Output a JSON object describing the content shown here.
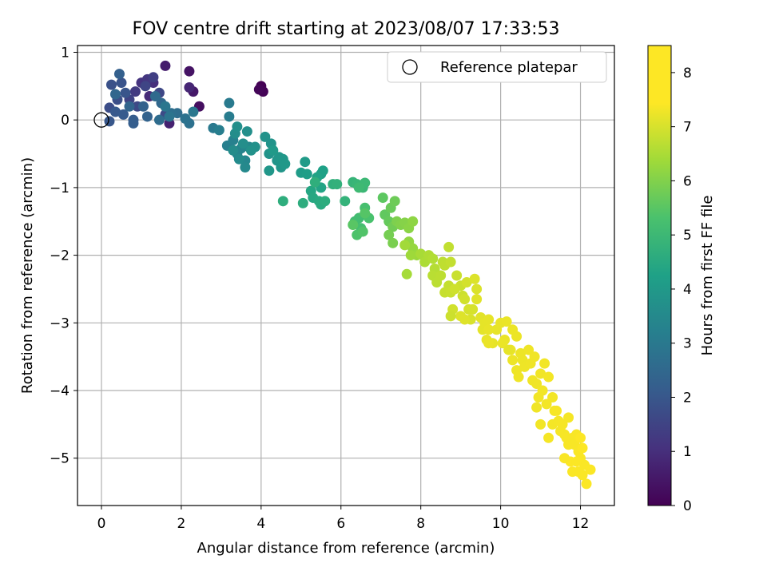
{
  "chart_data": {
    "type": "scatter",
    "title": "FOV centre drift starting at 2023/08/07 17:33:53",
    "xlabel": "Angular distance from reference (arcmin)",
    "ylabel": "Rotation from reference (arcmin)",
    "xlim": [
      -0.6,
      12.85
    ],
    "ylim": [
      -5.7,
      1.1
    ],
    "xticks": [
      0,
      2,
      4,
      6,
      8,
      10,
      12
    ],
    "yticks": [
      1,
      0,
      -1,
      -2,
      -3,
      -4,
      -5
    ],
    "xtick_labels": [
      "0",
      "2",
      "4",
      "6",
      "8",
      "10",
      "12"
    ],
    "ytick_labels": [
      "1",
      "0",
      "−1",
      "−2",
      "−3",
      "−4",
      "−5"
    ],
    "grid": true,
    "legend": {
      "position": "top-right",
      "entries": [
        "Reference platepar"
      ]
    },
    "reference_point": {
      "x": 0,
      "y": 0
    },
    "colorbar": {
      "label": "Hours from first FF file",
      "range": [
        0,
        8.5
      ],
      "ticks": [
        0,
        1,
        2,
        3,
        4,
        5,
        6,
        7,
        8
      ],
      "tick_labels": [
        "0",
        "1",
        "2",
        "3",
        "4",
        "5",
        "6",
        "7",
        "8"
      ],
      "colormap": "viridis"
    },
    "points": [
      [
        4.0,
        0.5,
        0.0
      ],
      [
        4.05,
        0.42,
        0.05
      ],
      [
        3.95,
        0.45,
        0.1
      ],
      [
        2.45,
        0.2,
        0.3
      ],
      [
        2.2,
        0.72,
        0.4
      ],
      [
        2.3,
        0.42,
        0.5
      ],
      [
        1.6,
        0.8,
        0.6
      ],
      [
        1.7,
        -0.05,
        0.7
      ],
      [
        2.2,
        0.48,
        0.8
      ],
      [
        1.2,
        0.35,
        0.9
      ],
      [
        1.3,
        0.55,
        1.0
      ],
      [
        1.0,
        0.55,
        1.1
      ],
      [
        1.15,
        0.6,
        1.2
      ],
      [
        0.85,
        0.42,
        1.3
      ],
      [
        1.3,
        0.63,
        1.4
      ],
      [
        0.7,
        0.3,
        1.5
      ],
      [
        1.1,
        0.5,
        1.55
      ],
      [
        1.45,
        0.4,
        1.6
      ],
      [
        0.9,
        0.2,
        1.65
      ],
      [
        1.6,
        0.08,
        1.7
      ],
      [
        0.2,
        0.18,
        1.75
      ],
      [
        0.4,
        0.3,
        1.8
      ],
      [
        0.25,
        0.52,
        1.85
      ],
      [
        0.5,
        0.55,
        1.9
      ],
      [
        0.6,
        0.4,
        1.95
      ],
      [
        0.2,
        -0.02,
        2.0
      ],
      [
        0.35,
        0.12,
        2.05
      ],
      [
        0.55,
        0.08,
        2.1
      ],
      [
        0.8,
        0.0,
        2.15
      ],
      [
        0.8,
        -0.05,
        2.2
      ],
      [
        0.45,
        0.68,
        2.25
      ],
      [
        1.05,
        0.2,
        2.3
      ],
      [
        1.15,
        0.05,
        2.35
      ],
      [
        0.7,
        0.2,
        2.4
      ],
      [
        0.35,
        0.38,
        2.45
      ],
      [
        1.5,
        0.25,
        2.5
      ],
      [
        1.35,
        0.35,
        2.55
      ],
      [
        1.45,
        0.0,
        2.6
      ],
      [
        1.9,
        0.1,
        2.65
      ],
      [
        1.75,
        0.1,
        2.7
      ],
      [
        2.2,
        -0.05,
        2.75
      ],
      [
        2.1,
        0.02,
        2.8
      ],
      [
        1.7,
        0.05,
        2.85
      ],
      [
        1.6,
        0.2,
        2.9
      ],
      [
        2.3,
        0.12,
        2.95
      ],
      [
        2.8,
        -0.12,
        3.0
      ],
      [
        3.2,
        0.25,
        3.05
      ],
      [
        3.2,
        0.05,
        3.1
      ],
      [
        2.95,
        -0.15,
        3.15
      ],
      [
        3.15,
        -0.38,
        3.2
      ],
      [
        3.3,
        -0.3,
        3.25
      ],
      [
        3.5,
        -0.42,
        3.3
      ],
      [
        3.4,
        -0.5,
        3.35
      ],
      [
        3.6,
        -0.6,
        3.4
      ],
      [
        3.7,
        -0.4,
        3.45
      ],
      [
        3.6,
        -0.7,
        3.5
      ],
      [
        3.45,
        -0.58,
        3.55
      ],
      [
        3.3,
        -0.45,
        3.6
      ],
      [
        3.35,
        -0.2,
        3.62
      ],
      [
        3.55,
        -0.35,
        3.65
      ],
      [
        3.4,
        -0.1,
        3.68
      ],
      [
        3.65,
        -0.17,
        3.7
      ],
      [
        3.85,
        -0.4,
        3.72
      ],
      [
        3.75,
        -0.45,
        3.75
      ],
      [
        4.1,
        -0.25,
        3.78
      ],
      [
        4.25,
        -0.35,
        3.8
      ],
      [
        4.2,
        -0.5,
        3.82
      ],
      [
        4.4,
        -0.6,
        3.85
      ],
      [
        4.5,
        -0.7,
        3.88
      ],
      [
        4.45,
        -0.55,
        3.9
      ],
      [
        4.2,
        -0.75,
        3.92
      ],
      [
        4.55,
        -0.58,
        3.95
      ],
      [
        4.6,
        -0.65,
        3.98
      ],
      [
        4.3,
        -0.45,
        4.0
      ],
      [
        5.1,
        -0.62,
        4.05
      ],
      [
        5.0,
        -0.78,
        4.1
      ],
      [
        5.15,
        -0.8,
        4.15
      ],
      [
        5.5,
        -0.8,
        4.2
      ],
      [
        5.55,
        -0.75,
        4.25
      ],
      [
        5.4,
        -0.85,
        4.3
      ],
      [
        5.5,
        -1.0,
        4.35
      ],
      [
        5.25,
        -1.05,
        4.4
      ],
      [
        5.3,
        -1.15,
        4.45
      ],
      [
        5.45,
        -1.2,
        4.5
      ],
      [
        5.5,
        -1.25,
        4.55
      ],
      [
        5.6,
        -1.2,
        4.6
      ],
      [
        5.05,
        -1.23,
        4.62
      ],
      [
        4.55,
        -1.2,
        4.65
      ],
      [
        5.35,
        -0.92,
        4.68
      ],
      [
        5.8,
        -0.95,
        4.7
      ],
      [
        5.9,
        -0.95,
        4.75
      ],
      [
        6.1,
        -1.2,
        4.8
      ],
      [
        6.3,
        -0.92,
        4.85
      ],
      [
        6.4,
        -0.95,
        4.9
      ],
      [
        6.55,
        -1.0,
        4.95
      ],
      [
        6.6,
        -0.93,
        5.0
      ],
      [
        6.45,
        -1.0,
        5.05
      ],
      [
        6.35,
        -1.5,
        5.1
      ],
      [
        6.45,
        -1.45,
        5.15
      ],
      [
        6.5,
        -1.6,
        5.2
      ],
      [
        6.6,
        -1.3,
        5.25
      ],
      [
        6.7,
        -1.45,
        5.3
      ],
      [
        6.4,
        -1.7,
        5.35
      ],
      [
        6.55,
        -1.65,
        5.4
      ],
      [
        6.6,
        -1.38,
        5.45
      ],
      [
        6.3,
        -1.55,
        5.5
      ],
      [
        7.05,
        -1.15,
        5.55
      ],
      [
        7.1,
        -1.4,
        5.6
      ],
      [
        7.2,
        -1.5,
        5.65
      ],
      [
        7.25,
        -1.3,
        5.7
      ],
      [
        7.35,
        -1.2,
        5.75
      ],
      [
        7.3,
        -1.58,
        5.8
      ],
      [
        7.2,
        -1.7,
        5.85
      ],
      [
        7.3,
        -1.82,
        5.9
      ],
      [
        7.4,
        -1.5,
        5.95
      ],
      [
        7.5,
        -1.55,
        6.0
      ],
      [
        7.6,
        -1.52,
        6.05
      ],
      [
        7.7,
        -1.6,
        6.1
      ],
      [
        7.8,
        -1.5,
        6.15
      ],
      [
        7.7,
        -1.8,
        6.2
      ],
      [
        7.8,
        -1.9,
        6.25
      ],
      [
        7.9,
        -2.0,
        6.3
      ],
      [
        7.75,
        -2.0,
        6.35
      ],
      [
        7.6,
        -1.85,
        6.4
      ],
      [
        7.65,
        -2.28,
        6.45
      ],
      [
        8.0,
        -1.98,
        6.5
      ],
      [
        8.1,
        -2.1,
        6.55
      ],
      [
        8.2,
        -2.0,
        6.6
      ],
      [
        8.3,
        -2.05,
        6.65
      ],
      [
        8.35,
        -2.2,
        6.7
      ],
      [
        8.3,
        -2.3,
        6.75
      ],
      [
        8.4,
        -2.4,
        6.78
      ],
      [
        8.5,
        -2.3,
        6.8
      ],
      [
        8.55,
        -2.1,
        6.82
      ],
      [
        8.6,
        -2.15,
        6.85
      ],
      [
        8.7,
        -1.88,
        6.88
      ],
      [
        8.75,
        -2.1,
        6.9
      ],
      [
        8.7,
        -2.45,
        6.92
      ],
      [
        8.6,
        -2.55,
        6.95
      ],
      [
        8.75,
        -2.55,
        6.98
      ],
      [
        8.9,
        -2.3,
        7.0
      ],
      [
        9.0,
        -2.45,
        7.02
      ],
      [
        9.05,
        -2.6,
        7.05
      ],
      [
        8.85,
        -2.5,
        7.08
      ],
      [
        8.8,
        -2.8,
        7.1
      ],
      [
        9.1,
        -2.65,
        7.12
      ],
      [
        9.15,
        -2.4,
        7.15
      ],
      [
        9.2,
        -2.8,
        7.18
      ],
      [
        9.3,
        -2.8,
        7.2
      ],
      [
        9.25,
        -2.95,
        7.22
      ],
      [
        9.4,
        -2.5,
        7.25
      ],
      [
        9.35,
        -2.35,
        7.28
      ],
      [
        9.0,
        -2.9,
        7.3
      ],
      [
        9.1,
        -2.95,
        7.32
      ],
      [
        9.4,
        -2.65,
        7.35
      ],
      [
        9.5,
        -2.92,
        7.38
      ],
      [
        9.55,
        -3.1,
        7.4
      ],
      [
        9.6,
        -3.0,
        7.42
      ],
      [
        9.7,
        -2.95,
        7.45
      ],
      [
        9.9,
        -3.1,
        7.48
      ],
      [
        9.8,
        -3.3,
        7.5
      ],
      [
        9.7,
        -3.1,
        7.52
      ],
      [
        9.65,
        -3.25,
        7.55
      ],
      [
        10.0,
        -3.0,
        7.58
      ],
      [
        10.1,
        -3.25,
        7.6
      ],
      [
        10.15,
        -2.98,
        7.62
      ],
      [
        10.05,
        -3.3,
        7.65
      ],
      [
        10.25,
        -3.4,
        7.68
      ],
      [
        10.3,
        -3.1,
        7.7
      ],
      [
        10.4,
        -3.2,
        7.72
      ],
      [
        10.5,
        -3.45,
        7.74
      ],
      [
        10.55,
        -3.55,
        7.76
      ],
      [
        10.3,
        -3.55,
        7.78
      ],
      [
        10.4,
        -3.7,
        7.8
      ],
      [
        10.6,
        -3.65,
        7.82
      ],
      [
        10.7,
        -3.4,
        7.84
      ],
      [
        10.75,
        -3.6,
        7.86
      ],
      [
        10.85,
        -3.5,
        7.88
      ],
      [
        10.8,
        -3.85,
        7.9
      ],
      [
        10.9,
        -3.9,
        7.92
      ],
      [
        11.0,
        -3.75,
        7.94
      ],
      [
        10.95,
        -4.1,
        7.96
      ],
      [
        11.05,
        -4.0,
        7.98
      ],
      [
        11.1,
        -3.6,
        8.0
      ],
      [
        11.2,
        -3.8,
        8.02
      ],
      [
        11.15,
        -4.2,
        8.04
      ],
      [
        11.3,
        -4.1,
        8.06
      ],
      [
        11.35,
        -4.3,
        8.08
      ],
      [
        11.3,
        -4.5,
        8.1
      ],
      [
        11.45,
        -4.45,
        8.12
      ],
      [
        11.5,
        -4.6,
        8.14
      ],
      [
        11.55,
        -4.5,
        8.16
      ],
      [
        11.6,
        -4.65,
        8.18
      ],
      [
        11.65,
        -4.7,
        8.2
      ],
      [
        11.7,
        -4.8,
        8.22
      ],
      [
        11.8,
        -4.7,
        8.24
      ],
      [
        11.9,
        -4.65,
        8.26
      ],
      [
        11.85,
        -4.8,
        8.28
      ],
      [
        11.95,
        -4.9,
        8.3
      ],
      [
        12.0,
        -5.0,
        8.32
      ],
      [
        12.1,
        -5.1,
        8.34
      ],
      [
        11.95,
        -5.2,
        8.36
      ],
      [
        12.05,
        -5.25,
        8.38
      ],
      [
        12.15,
        -5.38,
        8.4
      ],
      [
        12.25,
        -5.17,
        8.42
      ],
      [
        12.0,
        -4.7,
        8.44
      ],
      [
        11.75,
        -5.05,
        8.46
      ],
      [
        10.2,
        -3.4,
        7.45
      ],
      [
        9.7,
        -3.3,
        7.6
      ],
      [
        8.75,
        -2.9,
        7.05
      ],
      [
        11.0,
        -4.5,
        7.98
      ],
      [
        11.2,
        -4.7,
        8.15
      ],
      [
        11.4,
        -4.3,
        8.2
      ],
      [
        10.9,
        -4.25,
        7.9
      ],
      [
        10.45,
        -3.8,
        7.85
      ],
      [
        12.05,
        -4.85,
        8.45
      ],
      [
        11.6,
        -5.0,
        8.3
      ],
      [
        11.8,
        -5.2,
        8.38
      ],
      [
        11.7,
        -4.4,
        8.12
      ],
      [
        11.9,
        -5.05,
        8.4
      ]
    ]
  }
}
